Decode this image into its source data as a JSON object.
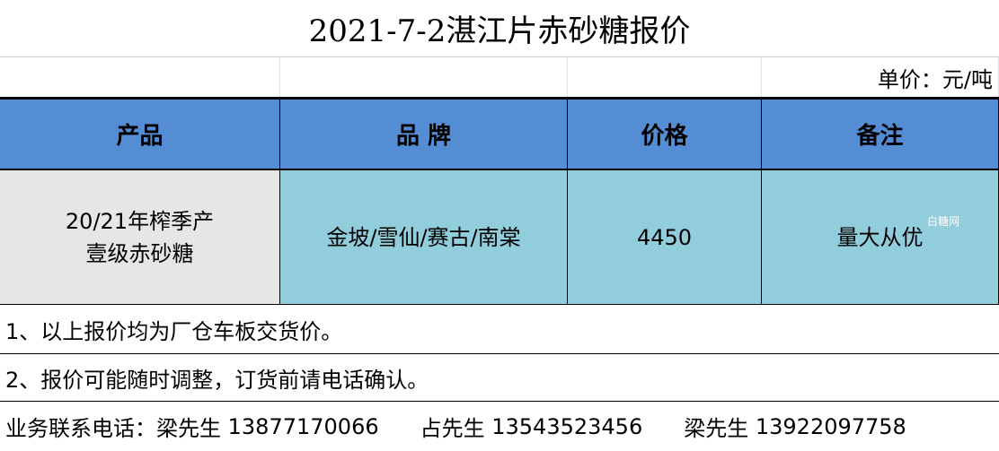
{
  "title": "2021-7-2湛江片赤砂糖报价",
  "unit": "单价：元/吨",
  "headers": [
    "产品",
    "品 牌",
    "价格",
    "备注"
  ],
  "row": {
    "product_line1": "20/21年榨季产",
    "product_line2": "壹级赤砂糖",
    "brand": "金坡/雪仙/赛古/南棠",
    "price": "4450",
    "remark": "量大从优"
  },
  "watermark": "白糖网",
  "notes": [
    "1、以上报价均为厂仓车板交货价。",
    "2、报价可能随时调整，订货前请电话确认。"
  ],
  "contacts": {
    "label": "业务联系电话：",
    "people": [
      {
        "name": "梁先生",
        "phone": "13877170066"
      },
      {
        "name": "占先生",
        "phone": "13543523456"
      },
      {
        "name": "梁先生",
        "phone": "13922097758"
      }
    ]
  },
  "colors": {
    "header": "#548dd4",
    "data": "#92cddc",
    "product": "#e6e6e6"
  }
}
